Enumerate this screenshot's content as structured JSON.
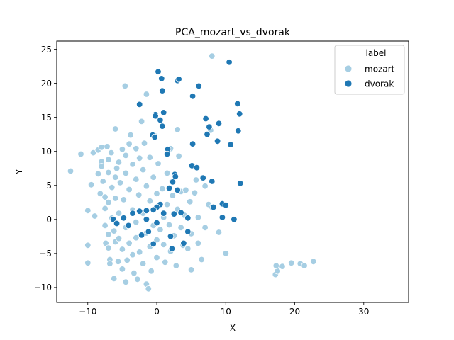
{
  "chart_data": {
    "type": "scatter",
    "title": "PCA_mozart_vs_dvorak",
    "xlabel": "X",
    "ylabel": "Y",
    "xlim": [
      -14.5,
      36.5
    ],
    "ylim": [
      -12.2,
      26.2
    ],
    "xticks": [
      -10,
      0,
      10,
      20,
      30
    ],
    "yticks": [
      -10,
      -5,
      0,
      5,
      10,
      15,
      20,
      25
    ],
    "grid": false,
    "legend": {
      "title": "label",
      "placement": "top-right"
    },
    "series": [
      {
        "name": "mozart",
        "color": "#a6cee3",
        "points": [
          [
            -12.5,
            7.1
          ],
          [
            -11,
            9.6
          ],
          [
            -10,
            1.3
          ],
          [
            -10,
            -3.8
          ],
          [
            -10,
            -6.4
          ],
          [
            -9.5,
            5.1
          ],
          [
            -9.2,
            9.8
          ],
          [
            -9,
            0.5
          ],
          [
            -8.5,
            10.2
          ],
          [
            -8.5,
            6.7
          ],
          [
            -8.2,
            3.8
          ],
          [
            -8,
            10.6
          ],
          [
            -8,
            8.5
          ],
          [
            -8,
            7.8
          ],
          [
            -7.8,
            5.6
          ],
          [
            -7.5,
            3.3
          ],
          [
            -7.5,
            1.6
          ],
          [
            -7.5,
            -0.9
          ],
          [
            -7.4,
            -3.5
          ],
          [
            -7.2,
            10.7
          ],
          [
            -7,
            8.8
          ],
          [
            -7,
            6.9
          ],
          [
            -7,
            2.5
          ],
          [
            -7,
            -2.2
          ],
          [
            -7,
            -4.2
          ],
          [
            -6.8,
            -5.9
          ],
          [
            -6.8,
            -6.5
          ],
          [
            -6.6,
            9.8
          ],
          [
            -6.5,
            4.7
          ],
          [
            -6.5,
            0.2
          ],
          [
            -6.2,
            -1.7
          ],
          [
            -6.2,
            -8.7
          ],
          [
            -6,
            13.3
          ],
          [
            -6,
            6.2
          ],
          [
            -6,
            3.1
          ],
          [
            -6,
            -3.3
          ],
          [
            -5.8,
            7.5
          ],
          [
            -5.6,
            -6.2
          ],
          [
            -5.5,
            8.4
          ],
          [
            -5.5,
            0.9
          ],
          [
            -5.5,
            -2.8
          ],
          [
            -5.3,
            5.4
          ],
          [
            -5,
            10.3
          ],
          [
            -5,
            -4.4
          ],
          [
            -5,
            -7.3
          ],
          [
            -4.8,
            2.9
          ],
          [
            -4.6,
            19.6
          ],
          [
            -4.5,
            9.4
          ],
          [
            -4.5,
            6.8
          ],
          [
            -4.5,
            -1.2
          ],
          [
            -4.5,
            -9.2
          ],
          [
            -4.3,
            -6
          ],
          [
            -4,
            11.1
          ],
          [
            -4,
            4.4
          ],
          [
            -4,
            -3.5
          ],
          [
            -3.8,
            12.4
          ],
          [
            -3.5,
            8.1
          ],
          [
            -3.5,
            1.4
          ],
          [
            -3.5,
            -5.2
          ],
          [
            -3.3,
            -7.9
          ],
          [
            -3,
            10.4
          ],
          [
            -3,
            5.9
          ],
          [
            -3,
            -0.4
          ],
          [
            -3,
            -2.7
          ],
          [
            -2.8,
            -8.8
          ],
          [
            -2.6,
            3.6
          ],
          [
            -2.5,
            9
          ],
          [
            -2.5,
            -4.8
          ],
          [
            -2.2,
            14.4
          ],
          [
            -2,
            7.3
          ],
          [
            -2,
            0.9
          ],
          [
            -2,
            -6.5
          ],
          [
            -1.8,
            11.2
          ],
          [
            -1.5,
            18.4
          ],
          [
            -1.5,
            4.9
          ],
          [
            -1.5,
            -2
          ],
          [
            -1.5,
            -9.5
          ],
          [
            -1.2,
            -10.2
          ],
          [
            -1,
            9.1
          ],
          [
            -1,
            2.7
          ],
          [
            -1,
            -4
          ],
          [
            -0.8,
            -7.6
          ],
          [
            -0.5,
            6.2
          ],
          [
            -0.5,
            -0.9
          ],
          [
            -0.3,
            12.3
          ],
          [
            0,
            3.8
          ],
          [
            0,
            -3
          ],
          [
            0,
            -5.6
          ],
          [
            0.2,
            8.2
          ],
          [
            0.5,
            -1.5
          ],
          [
            0.8,
            4.5
          ],
          [
            1,
            0.3
          ],
          [
            1,
            -3.7
          ],
          [
            1.2,
            -6.3
          ],
          [
            1.5,
            6.8
          ],
          [
            1.5,
            2.2
          ],
          [
            1.8,
            -0.8
          ],
          [
            2,
            10.4
          ],
          [
            2,
            -4.7
          ],
          [
            2.2,
            5.6
          ],
          [
            2.3,
            3.5
          ],
          [
            2.5,
            -2.4
          ],
          [
            2.8,
            -6.8
          ],
          [
            3,
            13.2
          ],
          [
            3,
            1.5
          ],
          [
            3.2,
            9.3
          ],
          [
            3.5,
            4.1
          ],
          [
            3.5,
            -1.2
          ],
          [
            3.8,
            -3.8
          ],
          [
            4,
            0.6
          ],
          [
            4.2,
            4.3
          ],
          [
            4.5,
            -4.3
          ],
          [
            4.8,
            2.6
          ],
          [
            5,
            -2.1
          ],
          [
            5,
            -7.4
          ],
          [
            5.5,
            3.9
          ],
          [
            5.7,
            5.8
          ],
          [
            6,
            0.3
          ],
          [
            6,
            -3.5
          ],
          [
            6.5,
            -5.9
          ],
          [
            7,
            4.9
          ],
          [
            7,
            -1.2
          ],
          [
            7.5,
            2.2
          ],
          [
            7.8,
            13.1
          ],
          [
            8,
            24
          ],
          [
            8,
            1.8
          ],
          [
            9,
            -1.9
          ],
          [
            10,
            -5
          ],
          [
            17.2,
            -8.1
          ],
          [
            17.5,
            -7.6
          ],
          [
            17.3,
            -6.8
          ],
          [
            18.2,
            -6.9
          ],
          [
            19.5,
            -6.4
          ],
          [
            20.8,
            -6.5
          ],
          [
            21.4,
            -6.8
          ],
          [
            22.7,
            -6.2
          ]
        ]
      },
      {
        "name": "dvorak",
        "color": "#1f78b4",
        "points": [
          [
            0.2,
            21.7
          ],
          [
            0.7,
            20.7
          ],
          [
            0.8,
            18.9
          ],
          [
            3,
            20.4
          ],
          [
            3.2,
            20.6
          ],
          [
            5.2,
            18.1
          ],
          [
            6.1,
            19.6
          ],
          [
            10.5,
            23.1
          ],
          [
            11.7,
            17
          ],
          [
            12,
            15.5
          ],
          [
            11.8,
            13
          ],
          [
            10.7,
            11
          ],
          [
            9,
            14.1
          ],
          [
            8.8,
            11.5
          ],
          [
            7.6,
            13.6
          ],
          [
            7.3,
            12.5
          ],
          [
            7.1,
            14.8
          ],
          [
            -2.5,
            16.9
          ],
          [
            -0.2,
            15.4
          ],
          [
            -0.2,
            15.2
          ],
          [
            0.5,
            14.6
          ],
          [
            1,
            15.7
          ],
          [
            0.8,
            13.7
          ],
          [
            -0.6,
            12.4
          ],
          [
            -0.3,
            12.1
          ],
          [
            1.6,
            10.3
          ],
          [
            1.5,
            9.6
          ],
          [
            5.2,
            11.1
          ],
          [
            5.1,
            7.9
          ],
          [
            5.8,
            7.6
          ],
          [
            6.7,
            6.1
          ],
          [
            8,
            5.6
          ],
          [
            12.1,
            5.3
          ],
          [
            2.6,
            6.6
          ],
          [
            2.7,
            6.3
          ],
          [
            2.3,
            5.5
          ],
          [
            1.8,
            4.6
          ],
          [
            3,
            4.3
          ],
          [
            0.5,
            2.2
          ],
          [
            0,
            1.8
          ],
          [
            -0.5,
            1.4
          ],
          [
            -1.5,
            1.3
          ],
          [
            -2.5,
            1.2
          ],
          [
            -3.5,
            0.9
          ],
          [
            1,
            0.9
          ],
          [
            2.5,
            0.8
          ],
          [
            3.5,
            1
          ],
          [
            -6.3,
            0
          ],
          [
            -5.8,
            -0.6
          ],
          [
            -4.8,
            0.2
          ],
          [
            -1.5,
            0
          ],
          [
            0,
            -0.5
          ],
          [
            -1.2,
            -1.8
          ],
          [
            -2.2,
            -2.3
          ],
          [
            2,
            -2.5
          ],
          [
            4.5,
            0.2
          ],
          [
            4.5,
            -1.8
          ],
          [
            3.9,
            -3.5
          ],
          [
            2.2,
            -4.3
          ],
          [
            -0.5,
            -3.6
          ],
          [
            8.2,
            1.8
          ],
          [
            9.5,
            2.3
          ],
          [
            10,
            2.1
          ],
          [
            9.5,
            0.3
          ],
          [
            11.2,
            0
          ],
          [
            -4.1,
            -0.9
          ]
        ]
      }
    ]
  }
}
